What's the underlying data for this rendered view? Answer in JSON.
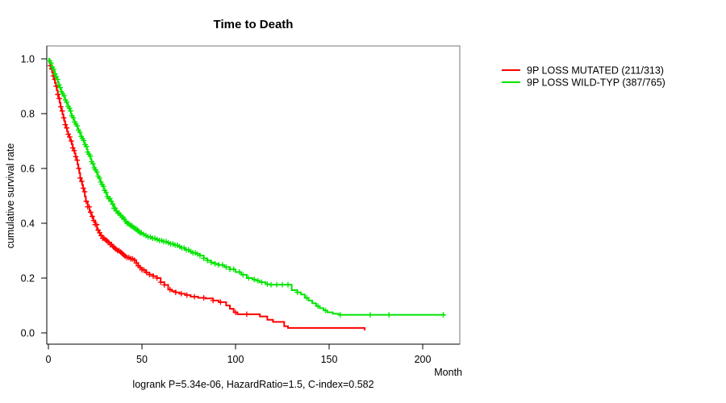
{
  "title": "Time to Death",
  "footer": "logrank P=5.34e-06, HazardRatio=1.5, C-index=0.582",
  "chart_data": {
    "type": "line",
    "subtype": "kaplan-meier-step-survival",
    "title": "Time to Death",
    "xlabel": "Month",
    "ylabel": "cumulative survival rate",
    "xlim": [
      0,
      220
    ],
    "ylim": [
      0.0,
      1.0
    ],
    "xticks": [
      0,
      50,
      100,
      150,
      200
    ],
    "ytick_values": [
      0.0,
      0.2,
      0.4,
      0.6,
      0.8,
      1.0
    ],
    "ytick_labels": [
      "0.0",
      "0.2",
      "0.4",
      "0.6",
      "0.8",
      "1.0"
    ],
    "grid": false,
    "legend_position": "right-outside",
    "annotation": "logrank P=5.34e-06, HazardRatio=1.5, C-index=0.582",
    "series": [
      {
        "name": "9P LOSS MUTATED (211/313)",
        "color": "#ff0000",
        "points": [
          [
            0,
            1
          ],
          [
            0.5,
            0.99
          ],
          [
            1,
            0.975
          ],
          [
            1.5,
            0.963
          ],
          [
            2,
            0.95
          ],
          [
            2.5,
            0.938
          ],
          [
            3,
            0.925
          ],
          [
            3.5,
            0.912
          ],
          [
            4,
            0.9
          ],
          [
            4.5,
            0.885
          ],
          [
            5,
            0.87
          ],
          [
            5.5,
            0.855
          ],
          [
            6,
            0.84
          ],
          [
            6.5,
            0.825
          ],
          [
            7,
            0.81
          ],
          [
            7.5,
            0.798
          ],
          [
            8,
            0.785
          ],
          [
            8.5,
            0.772
          ],
          [
            9,
            0.76
          ],
          [
            9.5,
            0.748
          ],
          [
            10,
            0.735
          ],
          [
            10.5,
            0.725
          ],
          [
            11,
            0.715
          ],
          [
            11.5,
            0.707
          ],
          [
            12,
            0.7
          ],
          [
            12.5,
            0.688
          ],
          [
            13,
            0.675
          ],
          [
            13.5,
            0.665
          ],
          [
            14,
            0.655
          ],
          [
            14.5,
            0.643
          ],
          [
            15,
            0.63
          ],
          [
            15.5,
            0.615
          ],
          [
            16,
            0.6
          ],
          [
            16.5,
            0.583
          ],
          [
            17,
            0.565
          ],
          [
            17.5,
            0.553
          ],
          [
            18,
            0.54
          ],
          [
            18.5,
            0.528
          ],
          [
            19,
            0.515
          ],
          [
            19.5,
            0.498
          ],
          [
            20,
            0.48
          ],
          [
            21,
            0.46
          ],
          [
            22,
            0.44
          ],
          [
            23,
            0.425
          ],
          [
            24,
            0.41
          ],
          [
            25,
            0.395
          ],
          [
            26,
            0.375
          ],
          [
            27,
            0.365
          ],
          [
            28,
            0.355
          ],
          [
            29,
            0.345
          ],
          [
            30,
            0.34
          ],
          [
            31,
            0.335
          ],
          [
            32,
            0.33
          ],
          [
            33,
            0.322
          ],
          [
            34,
            0.315
          ],
          [
            35,
            0.31
          ],
          [
            36,
            0.305
          ],
          [
            37,
            0.3
          ],
          [
            38,
            0.295
          ],
          [
            39,
            0.29
          ],
          [
            40,
            0.285
          ],
          [
            41,
            0.28
          ],
          [
            42,
            0.275
          ],
          [
            44,
            0.27
          ],
          [
            46,
            0.265
          ],
          [
            47,
            0.255
          ],
          [
            48,
            0.245
          ],
          [
            49,
            0.238
          ],
          [
            50,
            0.23
          ],
          [
            52,
            0.22
          ],
          [
            54,
            0.213
          ],
          [
            56,
            0.207
          ],
          [
            58,
            0.2
          ],
          [
            60,
            0.185
          ],
          [
            62,
            0.175
          ],
          [
            64,
            0.158
          ],
          [
            66,
            0.152
          ],
          [
            68,
            0.148
          ],
          [
            70,
            0.143
          ],
          [
            73,
            0.138
          ],
          [
            76,
            0.132
          ],
          [
            80,
            0.128
          ],
          [
            84,
            0.126
          ],
          [
            88,
            0.118
          ],
          [
            91,
            0.112
          ],
          [
            95,
            0.1
          ],
          [
            97,
            0.088
          ],
          [
            99,
            0.075
          ],
          [
            101,
            0.068
          ],
          [
            113,
            0.06
          ],
          [
            117,
            0.048
          ],
          [
            120,
            0.04
          ],
          [
            126,
            0.024
          ],
          [
            128,
            0.018
          ],
          [
            168,
            0.018
          ],
          [
            169,
            0.009
          ]
        ],
        "censor_months": [
          1,
          1.8,
          2.6,
          3.4,
          4.2,
          5,
          5.8,
          6.6,
          7.4,
          8.2,
          9,
          9.8,
          10.6,
          11.4,
          12.2,
          13,
          13.8,
          14.6,
          15.4,
          16.2,
          17,
          17.8,
          18.6,
          19.4,
          20.2,
          21,
          21.8,
          22.6,
          23.4,
          24.2,
          25,
          25.8,
          26.6,
          27.4,
          28.2,
          29,
          29.8,
          30.6,
          31.4,
          32.2,
          33,
          33.8,
          34.6,
          35.4,
          36.2,
          37,
          37.8,
          38.6,
          39.4,
          40.2,
          41,
          42,
          43,
          44,
          45,
          46,
          47,
          48,
          49,
          50,
          51,
          52.5,
          54,
          56,
          58,
          60,
          62,
          65,
          68,
          71,
          74,
          78,
          83,
          88,
          92,
          100,
          106
        ]
      },
      {
        "name": "9P LOSS WILD-TYP (387/765)",
        "color": "#00e400",
        "points": [
          [
            0,
            1
          ],
          [
            0.5,
            0.993
          ],
          [
            1,
            0.985
          ],
          [
            1.5,
            0.978
          ],
          [
            2,
            0.97
          ],
          [
            2.5,
            0.962
          ],
          [
            3,
            0.955
          ],
          [
            3.5,
            0.945
          ],
          [
            4,
            0.935
          ],
          [
            4.5,
            0.925
          ],
          [
            5,
            0.915
          ],
          [
            5.5,
            0.905
          ],
          [
            6,
            0.895
          ],
          [
            6.5,
            0.888
          ],
          [
            7,
            0.88
          ],
          [
            7.5,
            0.872
          ],
          [
            8,
            0.865
          ],
          [
            8.5,
            0.857
          ],
          [
            9,
            0.85
          ],
          [
            9.5,
            0.842
          ],
          [
            10,
            0.835
          ],
          [
            10.5,
            0.827
          ],
          [
            11,
            0.82
          ],
          [
            11.5,
            0.81
          ],
          [
            12,
            0.8
          ],
          [
            12.5,
            0.792
          ],
          [
            13,
            0.785
          ],
          [
            13.5,
            0.777
          ],
          [
            14,
            0.77
          ],
          [
            14.5,
            0.762
          ],
          [
            15,
            0.755
          ],
          [
            15.5,
            0.747
          ],
          [
            16,
            0.74
          ],
          [
            16.5,
            0.732
          ],
          [
            17,
            0.725
          ],
          [
            17.5,
            0.717
          ],
          [
            18,
            0.71
          ],
          [
            18.5,
            0.702
          ],
          [
            19,
            0.695
          ],
          [
            19.5,
            0.687
          ],
          [
            20,
            0.68
          ],
          [
            20.5,
            0.67
          ],
          [
            21,
            0.66
          ],
          [
            21.5,
            0.652
          ],
          [
            22,
            0.645
          ],
          [
            22.5,
            0.635
          ],
          [
            23,
            0.625
          ],
          [
            23.5,
            0.617
          ],
          [
            24,
            0.61
          ],
          [
            24.5,
            0.602
          ],
          [
            25,
            0.595
          ],
          [
            25.5,
            0.587
          ],
          [
            26,
            0.58
          ],
          [
            26.5,
            0.572
          ],
          [
            27,
            0.565
          ],
          [
            27.5,
            0.557
          ],
          [
            28,
            0.55
          ],
          [
            28.5,
            0.542
          ],
          [
            29,
            0.535
          ],
          [
            29.5,
            0.527
          ],
          [
            30,
            0.52
          ],
          [
            30.5,
            0.512
          ],
          [
            31,
            0.505
          ],
          [
            31.5,
            0.497
          ],
          [
            32,
            0.49
          ],
          [
            33,
            0.48
          ],
          [
            34,
            0.47
          ],
          [
            35,
            0.455
          ],
          [
            36,
            0.445
          ],
          [
            37,
            0.437
          ],
          [
            38,
            0.43
          ],
          [
            39,
            0.422
          ],
          [
            40,
            0.415
          ],
          [
            41,
            0.407
          ],
          [
            42,
            0.4
          ],
          [
            43,
            0.395
          ],
          [
            44,
            0.39
          ],
          [
            45,
            0.385
          ],
          [
            46,
            0.38
          ],
          [
            47,
            0.375
          ],
          [
            48,
            0.37
          ],
          [
            49,
            0.365
          ],
          [
            50,
            0.36
          ],
          [
            51.5,
            0.355
          ],
          [
            53,
            0.35
          ],
          [
            55,
            0.345
          ],
          [
            57,
            0.341
          ],
          [
            59,
            0.337
          ],
          [
            61,
            0.333
          ],
          [
            63,
            0.329
          ],
          [
            65,
            0.325
          ],
          [
            67,
            0.32
          ],
          [
            69,
            0.315
          ],
          [
            71,
            0.31
          ],
          [
            73,
            0.303
          ],
          [
            75,
            0.297
          ],
          [
            77,
            0.292
          ],
          [
            79,
            0.288
          ],
          [
            81,
            0.282
          ],
          [
            83,
            0.272
          ],
          [
            85,
            0.264
          ],
          [
            87,
            0.257
          ],
          [
            89,
            0.252
          ],
          [
            91,
            0.248
          ],
          [
            94,
            0.24
          ],
          [
            97,
            0.232
          ],
          [
            100,
            0.222
          ],
          [
            103,
            0.212
          ],
          [
            106,
            0.2
          ],
          [
            109,
            0.195
          ],
          [
            111,
            0.19
          ],
          [
            113,
            0.185
          ],
          [
            116,
            0.178
          ],
          [
            118,
            0.176
          ],
          [
            130,
            0.156
          ],
          [
            133,
            0.148
          ],
          [
            135,
            0.14
          ],
          [
            137,
            0.128
          ],
          [
            139,
            0.118
          ],
          [
            141,
            0.108
          ],
          [
            143,
            0.098
          ],
          [
            145,
            0.09
          ],
          [
            147,
            0.082
          ],
          [
            149,
            0.075
          ],
          [
            152,
            0.07
          ],
          [
            155,
            0.066
          ],
          [
            212,
            0.066
          ]
        ],
        "censor_months": [
          0.7,
          1.4,
          2.1,
          2.8,
          3.5,
          4.2,
          4.9,
          5.6,
          6.3,
          7,
          7.7,
          8.4,
          9.1,
          9.8,
          10.5,
          11.2,
          11.9,
          12.6,
          13.3,
          14,
          14.7,
          15.4,
          16.1,
          16.8,
          17.5,
          18.2,
          18.9,
          19.6,
          20.3,
          21,
          21.7,
          22.4,
          23.1,
          23.8,
          24.5,
          25.2,
          25.9,
          26.6,
          27.3,
          28,
          28.7,
          29.4,
          30.1,
          30.8,
          31.5,
          32.2,
          32.9,
          33.6,
          34.3,
          35,
          35.7,
          36.4,
          37.1,
          37.8,
          38.5,
          39.2,
          39.9,
          40.6,
          41.3,
          42,
          42.7,
          43.4,
          44.1,
          44.8,
          45.5,
          46.2,
          46.9,
          47.6,
          48.3,
          49,
          49.7,
          50.9,
          52.1,
          53.3,
          54.5,
          55.7,
          56.9,
          58.1,
          59.3,
          60.5,
          61.7,
          62.9,
          64.1,
          65.3,
          66.5,
          67.7,
          68.9,
          70.1,
          71.3,
          72.5,
          73.7,
          74.9,
          76.1,
          77.3,
          78.5,
          79.7,
          81,
          83,
          85,
          87,
          89,
          91,
          93,
          95,
          97,
          99,
          102,
          104,
          107,
          110,
          112,
          114,
          117,
          119,
          122,
          125,
          128,
          133,
          138,
          144,
          148,
          156,
          172,
          182,
          211
        ]
      }
    ]
  }
}
